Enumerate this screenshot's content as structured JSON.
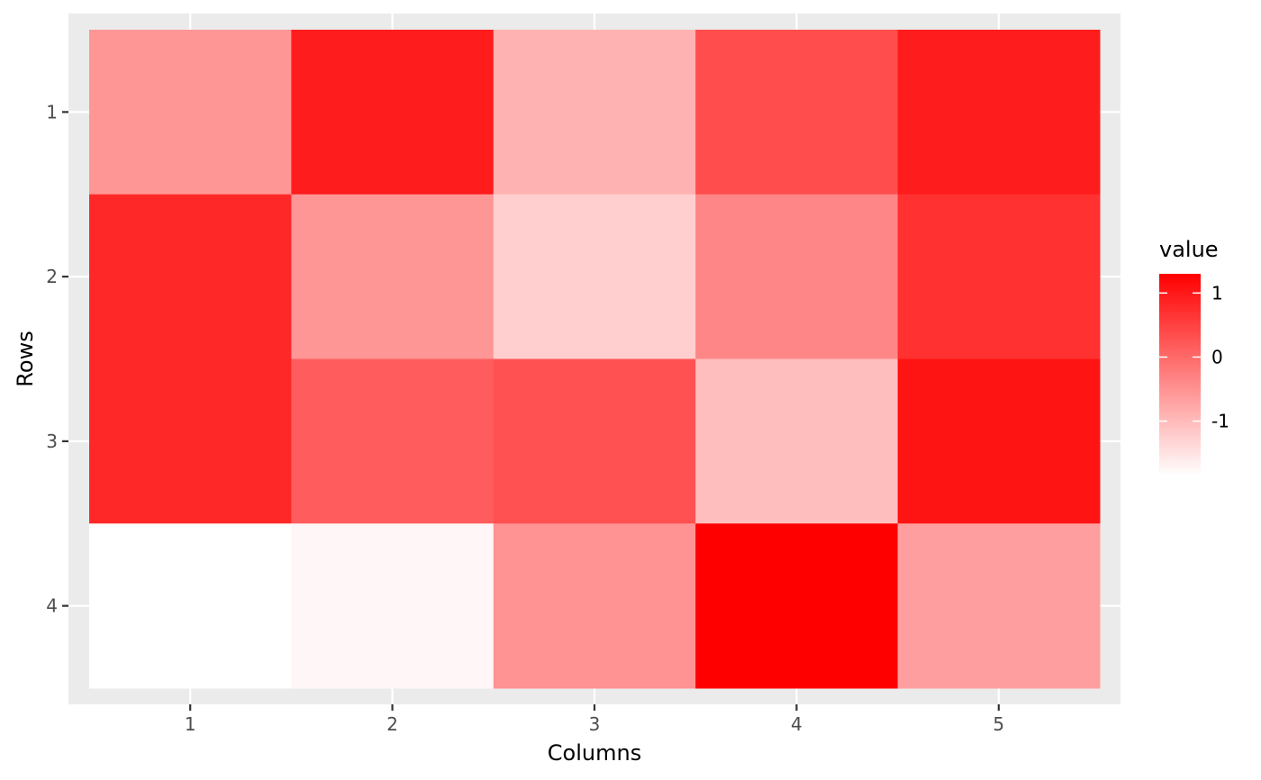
{
  "chart_data": {
    "type": "heatmap",
    "title": "",
    "xlabel": "Columns",
    "ylabel": "Rows",
    "x_categories": [
      "1",
      "2",
      "3",
      "4",
      "5"
    ],
    "y_categories": [
      "1",
      "2",
      "3",
      "4"
    ],
    "values": [
      [
        -0.55,
        0.95,
        -0.9,
        0.35,
        0.95
      ],
      [
        0.8,
        -0.55,
        -1.25,
        -0.35,
        0.7
      ],
      [
        0.8,
        0.15,
        0.3,
        -1.05,
        1.05
      ],
      [
        -1.85,
        -1.75,
        -0.5,
        1.3,
        -0.65
      ]
    ],
    "color_scale": {
      "low": "#ffffff",
      "high": "#ff0000",
      "min": -1.85,
      "max": 1.3
    },
    "legend": {
      "title": "value",
      "ticks": [
        1,
        0,
        -1
      ],
      "tick_labels": [
        "1",
        "0",
        "-1"
      ],
      "position": "right"
    },
    "grid": true,
    "panel_background": "#ebebeb",
    "grid_color": "#ffffff"
  }
}
